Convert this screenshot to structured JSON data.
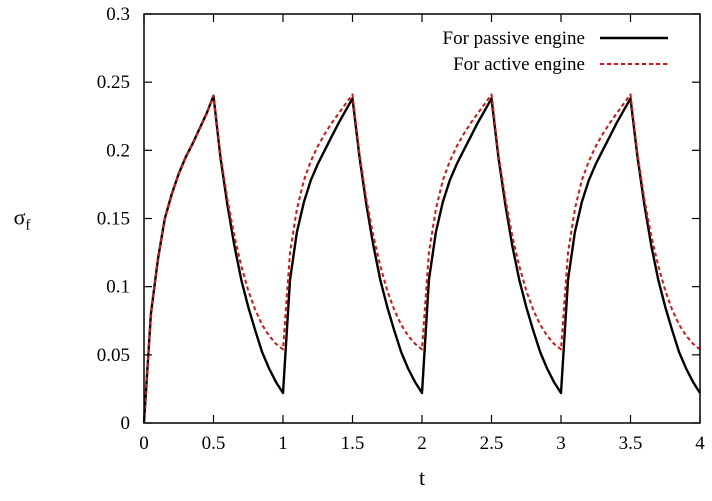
{
  "chart_data": {
    "type": "line",
    "title": "",
    "xlabel": "t",
    "ylabel": "σ",
    "ylabel_subscript": "f",
    "xlim": [
      0,
      4
    ],
    "ylim": [
      0,
      0.3
    ],
    "x_ticks": [
      0,
      0.5,
      1,
      1.5,
      2,
      2.5,
      3,
      3.5,
      4
    ],
    "x_tick_labels": [
      "0",
      "0.5",
      "1",
      "1.5",
      "2",
      "2.5",
      "3",
      "3.5",
      "4"
    ],
    "y_ticks": [
      0,
      0.05,
      0.1,
      0.15,
      0.2,
      0.25,
      0.3
    ],
    "y_tick_labels": [
      "0",
      "0.05",
      "0.1",
      "0.15",
      "0.2",
      "0.25",
      "0.3"
    ],
    "grid": false,
    "legend_position": "top-right",
    "series": [
      {
        "name": "For passive engine",
        "color": "#000000",
        "style": "solid",
        "x": [
          0,
          0.05,
          0.1,
          0.15,
          0.2,
          0.25,
          0.3,
          0.35,
          0.4,
          0.45,
          0.5,
          0.55,
          0.6,
          0.65,
          0.7,
          0.75,
          0.8,
          0.85,
          0.9,
          0.95,
          1.0,
          1.0,
          1.05,
          1.1,
          1.15,
          1.2,
          1.25,
          1.3,
          1.35,
          1.4,
          1.45,
          1.5,
          1.55,
          1.6,
          1.65,
          1.7,
          1.75,
          1.8,
          1.85,
          1.9,
          1.95,
          2.0,
          2.0,
          2.05,
          2.1,
          2.15,
          2.2,
          2.25,
          2.3,
          2.35,
          2.4,
          2.45,
          2.5,
          2.55,
          2.6,
          2.65,
          2.7,
          2.75,
          2.8,
          2.85,
          2.9,
          2.95,
          3.0,
          3.0,
          3.05,
          3.1,
          3.15,
          3.2,
          3.25,
          3.3,
          3.35,
          3.4,
          3.45,
          3.5,
          3.55,
          3.6,
          3.65,
          3.7,
          3.75,
          3.8,
          3.85,
          3.9,
          3.95,
          4.0
        ],
        "y": [
          0,
          0.08,
          0.12,
          0.15,
          0.168,
          0.183,
          0.195,
          0.205,
          0.216,
          0.227,
          0.24,
          0.195,
          0.16,
          0.13,
          0.105,
          0.085,
          0.068,
          0.052,
          0.04,
          0.03,
          0.022,
          0.022,
          0.105,
          0.14,
          0.162,
          0.178,
          0.19,
          0.2,
          0.21,
          0.22,
          0.229,
          0.238,
          0.195,
          0.16,
          0.13,
          0.105,
          0.085,
          0.068,
          0.052,
          0.04,
          0.03,
          0.022,
          0.022,
          0.105,
          0.14,
          0.162,
          0.178,
          0.19,
          0.2,
          0.21,
          0.22,
          0.229,
          0.238,
          0.195,
          0.16,
          0.13,
          0.105,
          0.085,
          0.068,
          0.052,
          0.04,
          0.03,
          0.022,
          0.022,
          0.105,
          0.14,
          0.162,
          0.178,
          0.19,
          0.2,
          0.21,
          0.22,
          0.229,
          0.238,
          0.195,
          0.16,
          0.13,
          0.105,
          0.085,
          0.068,
          0.052,
          0.04,
          0.03,
          0.022
        ]
      },
      {
        "name": "For active engine",
        "color": "#dd1111",
        "style": "dashed",
        "x": [
          0,
          0.05,
          0.1,
          0.15,
          0.2,
          0.25,
          0.3,
          0.35,
          0.4,
          0.45,
          0.5,
          0.55,
          0.6,
          0.65,
          0.7,
          0.75,
          0.8,
          0.85,
          0.9,
          0.95,
          1.0,
          1.0,
          1.05,
          1.1,
          1.15,
          1.2,
          1.25,
          1.3,
          1.35,
          1.4,
          1.45,
          1.5,
          1.55,
          1.6,
          1.65,
          1.7,
          1.75,
          1.8,
          1.85,
          1.9,
          1.95,
          2.0,
          2.0,
          2.05,
          2.1,
          2.15,
          2.2,
          2.25,
          2.3,
          2.35,
          2.4,
          2.45,
          2.5,
          2.55,
          2.6,
          2.65,
          2.7,
          2.75,
          2.8,
          2.85,
          2.9,
          2.95,
          3.0,
          3.0,
          3.05,
          3.1,
          3.15,
          3.2,
          3.25,
          3.3,
          3.35,
          3.4,
          3.45,
          3.5,
          3.55,
          3.6,
          3.65,
          3.7,
          3.75,
          3.8,
          3.85,
          3.9,
          3.95,
          4.0
        ],
        "y": [
          0,
          0.08,
          0.12,
          0.15,
          0.168,
          0.183,
          0.195,
          0.205,
          0.216,
          0.227,
          0.24,
          0.197,
          0.164,
          0.137,
          0.115,
          0.097,
          0.083,
          0.072,
          0.064,
          0.058,
          0.054,
          0.054,
          0.125,
          0.157,
          0.178,
          0.192,
          0.203,
          0.212,
          0.22,
          0.227,
          0.234,
          0.241,
          0.197,
          0.164,
          0.137,
          0.115,
          0.097,
          0.083,
          0.072,
          0.064,
          0.058,
          0.054,
          0.054,
          0.125,
          0.157,
          0.178,
          0.192,
          0.203,
          0.212,
          0.22,
          0.227,
          0.234,
          0.241,
          0.197,
          0.164,
          0.137,
          0.115,
          0.097,
          0.083,
          0.072,
          0.064,
          0.058,
          0.054,
          0.054,
          0.125,
          0.157,
          0.178,
          0.192,
          0.203,
          0.212,
          0.22,
          0.227,
          0.234,
          0.241,
          0.197,
          0.164,
          0.137,
          0.115,
          0.097,
          0.083,
          0.072,
          0.064,
          0.058,
          0.054
        ]
      }
    ]
  }
}
